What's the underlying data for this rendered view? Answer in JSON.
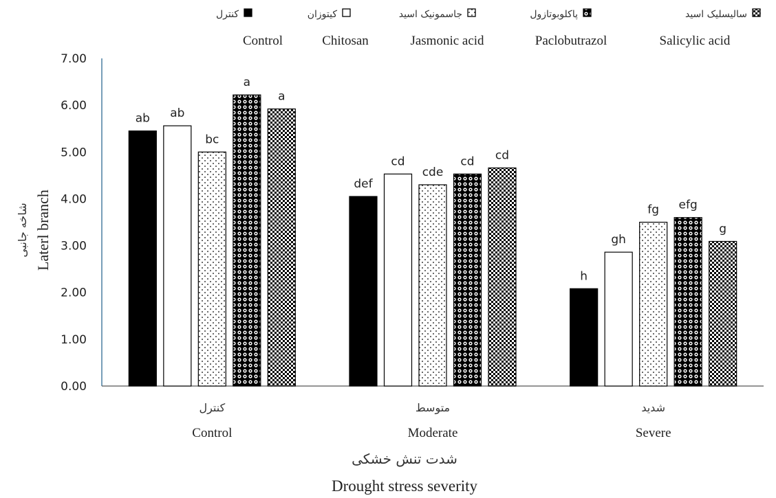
{
  "chart_data": {
    "type": "bar",
    "categories": [
      {
        "fa": "کنترل",
        "en": "Control"
      },
      {
        "fa": "متوسط",
        "en": "Moderate"
      },
      {
        "fa": "شدید",
        "en": "Severe"
      }
    ],
    "series": [
      {
        "name_fa": "کنترل",
        "name_en": "Control",
        "pattern": "solid",
        "values": [
          5.45,
          4.05,
          2.08
        ],
        "labels": [
          "ab",
          "def",
          "h"
        ]
      },
      {
        "name_fa": "کیتوزان",
        "name_en": "Chitosan",
        "pattern": "white",
        "values": [
          5.56,
          4.53,
          2.86
        ],
        "labels": [
          "ab",
          "cd",
          "gh"
        ]
      },
      {
        "name_fa": "جاسمونیک اسید",
        "name_en": "Jasmonic acid",
        "pattern": "dots",
        "values": [
          5.0,
          4.3,
          3.5
        ],
        "labels": [
          "bc",
          "cde",
          "fg"
        ]
      },
      {
        "name_fa": "پاکلوبوتازول",
        "name_en": "Paclobutrazol",
        "pattern": "circles",
        "values": [
          6.22,
          4.53,
          3.6
        ],
        "labels": [
          "a",
          "cd",
          "efg"
        ]
      },
      {
        "name_fa": "سالیسلیک اسید",
        "name_en": "Salicylic acid",
        "pattern": "checker",
        "values": [
          5.92,
          4.66,
          3.09
        ],
        "labels": [
          "a",
          "cd",
          "g"
        ]
      }
    ],
    "xlabel_fa": "شدت تنش خشکی",
    "xlabel_en": "Drought stress severity",
    "ylabel_fa": "شاخه جانبی",
    "ylabel_en": "Laterl branch",
    "ylim": [
      0,
      7
    ],
    "yticks": [
      "0.00",
      "1.00",
      "2.00",
      "3.00",
      "4.00",
      "5.00",
      "6.00",
      "7.00"
    ],
    "grid": false,
    "legend_position": "top"
  }
}
